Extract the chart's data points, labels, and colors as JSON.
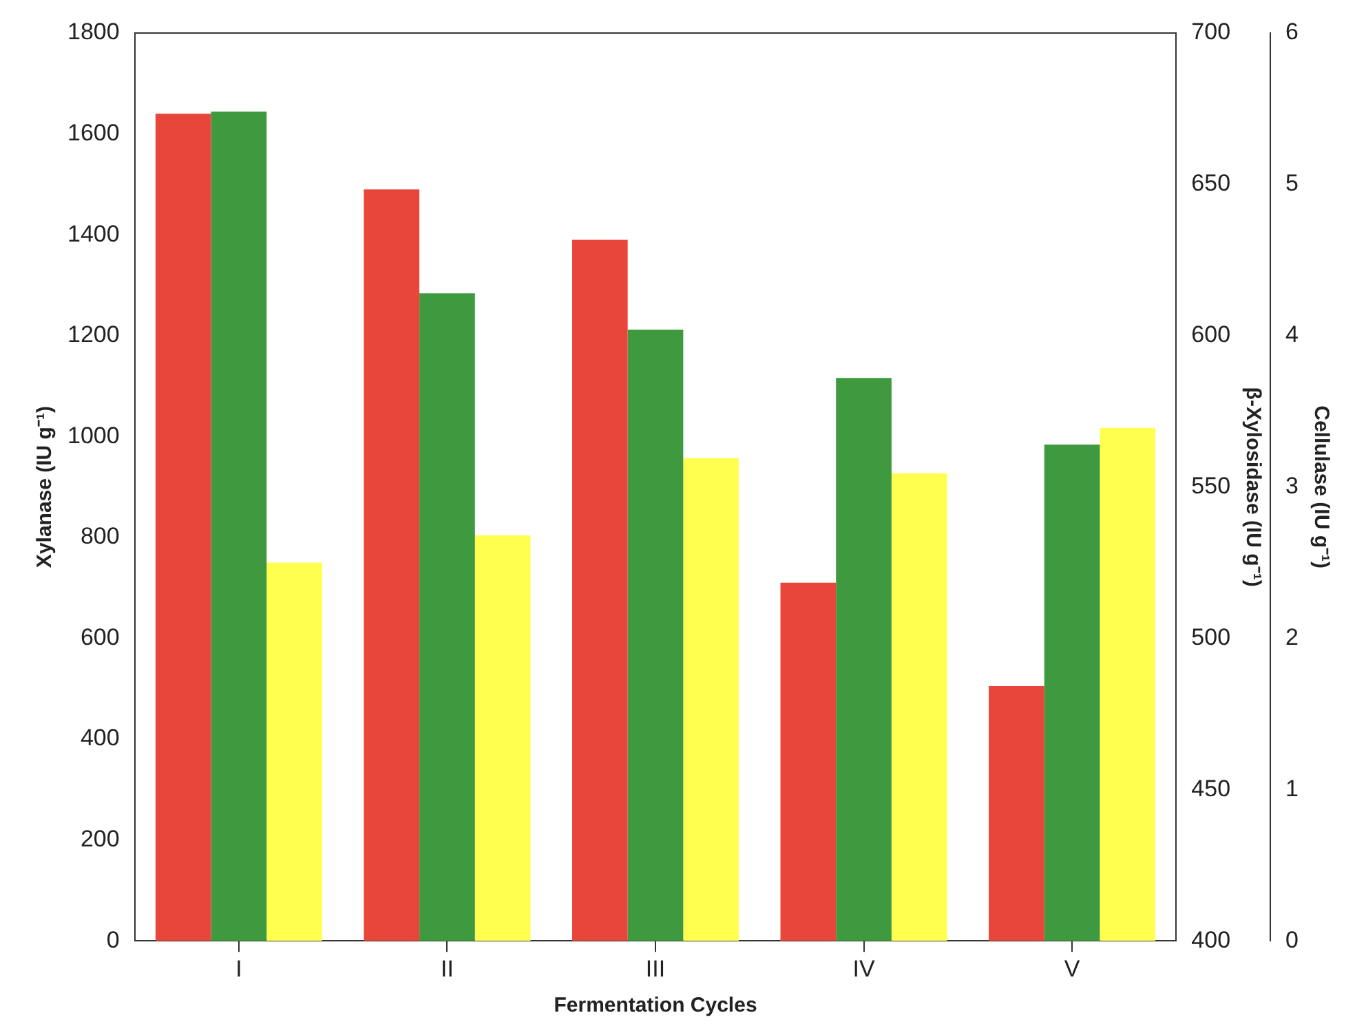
{
  "chart_data": {
    "type": "bar",
    "xlabel": "Fermentation Cycles",
    "ylabel": "Xylanase (IU g⁻¹)",
    "y2label": "β-Xylosidase (IU g⁻¹)",
    "y3label": "Cellulase (IU g⁻¹)",
    "categories": [
      "I",
      "II",
      "III",
      "IV",
      "V"
    ],
    "series": [
      {
        "color": "#e8463a",
        "values": [
          1640,
          1490,
          1390,
          710,
          505
        ]
      },
      {
        "color": "#3f9a3f",
        "axis": "y2",
        "values": [
          674,
          614,
          602,
          586,
          564
        ]
      },
      {
        "color": "#ffff50",
        "axis": "y3",
        "values": [
          2.5,
          2.68,
          3.19,
          3.09,
          3.39
        ]
      }
    ],
    "ylim": [
      0,
      1800
    ],
    "yticks": [
      0,
      200,
      400,
      600,
      800,
      1000,
      1200,
      1400,
      1600,
      1800
    ],
    "y2lim": [
      400,
      700
    ],
    "y2ticks": [
      400,
      450,
      500,
      550,
      600,
      650,
      700
    ],
    "y3lim": [
      0,
      6
    ],
    "y3ticks": [
      0,
      1,
      2,
      3,
      4,
      5,
      6
    ],
    "grid": false,
    "legend": false
  }
}
